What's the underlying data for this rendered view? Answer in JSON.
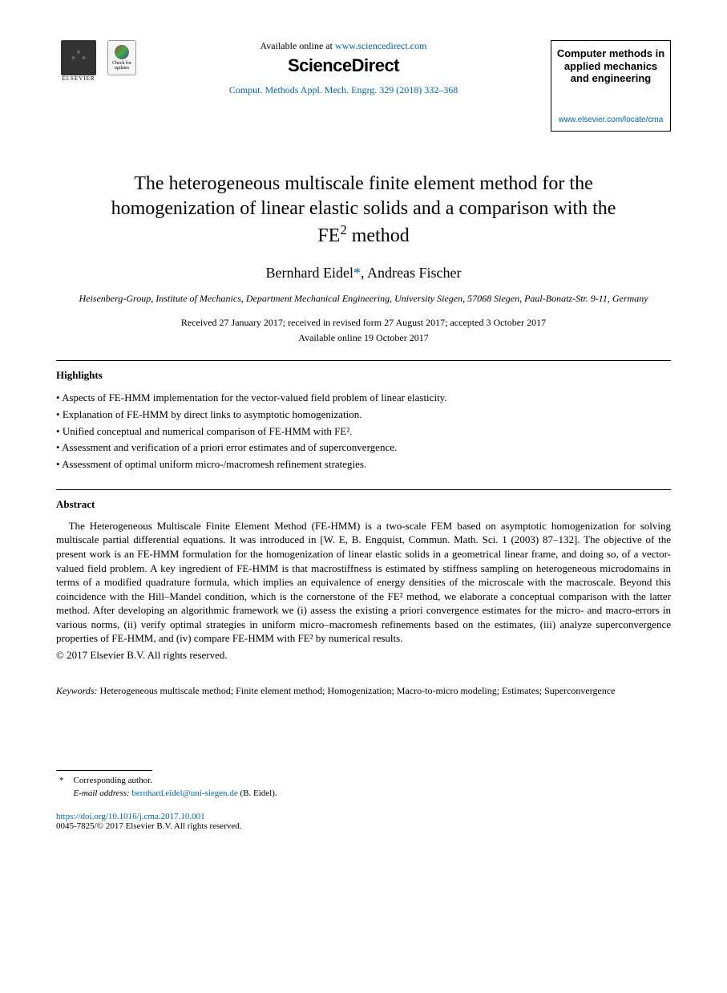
{
  "header": {
    "publisher_name": "ELSEVIER",
    "check_badge_text": "Check for updates",
    "available_prefix": "Available online at ",
    "available_url": "www.sciencedirect.com",
    "sd_brand": "ScienceDirect",
    "citation_text": "Comput. Methods Appl. Mech. Engrg. 329 (2018) 332–368",
    "journal_banner": "Computer methods in applied mechanics and engineering",
    "journal_url": "www.elsevier.com/locate/cma"
  },
  "title_parts": {
    "line1": "The heterogeneous multiscale finite element method for the",
    "line2": "homogenization of linear elastic solids and a comparison with the",
    "line3_pre": "FE",
    "line3_sup": "2",
    "line3_post": " method"
  },
  "authors": {
    "a1_name": "Bernhard Eidel",
    "a1_mark": "*",
    "sep": ", ",
    "a2_name": "Andreas Fischer"
  },
  "affiliation": "Heisenberg-Group, Institute of Mechanics, Department Mechanical Engineering, University Siegen, 57068 Siegen, Paul-Bonatz-Str. 9-11, Germany",
  "dates": {
    "line1": "Received 27 January 2017; received in revised form 27 August 2017; accepted 3 October 2017",
    "line2": "Available online 19 October 2017"
  },
  "highlights": {
    "label": "Highlights",
    "items": [
      "Aspects of FE-HMM implementation for the vector-valued field problem of linear elasticity.",
      "Explanation of FE-HMM by direct links to asymptotic homogenization.",
      "Unified conceptual and numerical comparison of FE-HMM with FE².",
      "Assessment and verification of a priori error estimates and of superconvergence.",
      "Assessment of optimal uniform micro-/macromesh refinement strategies."
    ]
  },
  "abstract": {
    "label": "Abstract",
    "body": "The Heterogeneous Multiscale Finite Element Method (FE-HMM) is a two-scale FEM based on asymptotic homogenization for solving multiscale partial differential equations. It was introduced in [W. E, B. Engquist, Commun. Math. Sci. 1 (2003) 87–132]. The objective of the present work is an FE-HMM formulation for the homogenization of linear elastic solids in a geometrical linear frame, and doing so, of a vector-valued field problem. A key ingredient of FE-HMM is that macrostiffness is estimated by stiffness sampling on heterogeneous microdomains in terms of a modified quadrature formula, which implies an equivalence of energy densities of the microscale with the macroscale. Beyond this coincidence with the Hill–Mandel condition, which is the cornerstone of the FE² method, we elaborate a conceptual comparison with the latter method. After developing an algorithmic framework we (i) assess the existing a priori convergence estimates for the micro- and macro-errors in various norms, (ii) verify optimal strategies in uniform micro–macromesh refinements based on the estimates, (iii) analyze superconvergence properties of FE-HMM, and (iv) compare FE-HMM with FE² by numerical results.",
    "copyright": "© 2017 Elsevier B.V. All rights reserved."
  },
  "keywords": {
    "label": "Keywords:",
    "text": " Heterogeneous multiscale method; Finite element method; Homogenization; Macro-to-micro modeling; Estimates; Superconvergence"
  },
  "footnote": {
    "corr": "Corresponding author.",
    "email_label": "E-mail address:",
    "email": "bernhard.eidel@uni-siegen.de",
    "email_suffix": " (B. Eidel)."
  },
  "doi": {
    "url": "https://doi.org/10.1016/j.cma.2017.10.001",
    "issn_line": "0045-7825/© 2017 Elsevier B.V. All rights reserved."
  },
  "colors": {
    "link": "#0066aa",
    "text": "#000000",
    "bg": "#ffffff"
  }
}
